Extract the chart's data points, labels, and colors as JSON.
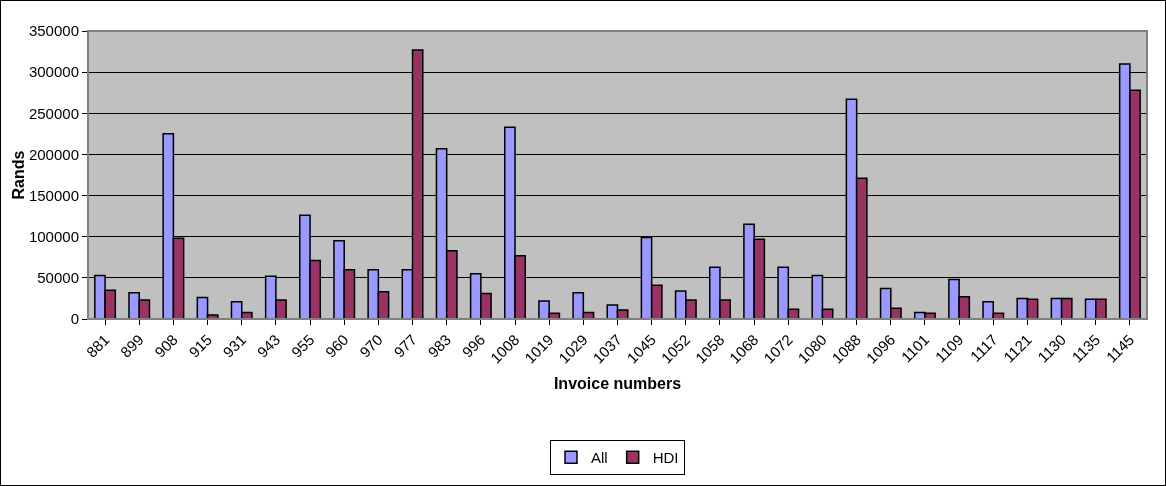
{
  "chart_data": {
    "type": "bar",
    "xlabel": "Invoice numbers",
    "ylabel": "Rands",
    "categories": [
      "881",
      "899",
      "908",
      "915",
      "931",
      "943",
      "955",
      "960",
      "970",
      "977",
      "983",
      "996",
      "1008",
      "1019",
      "1029",
      "1037",
      "1045",
      "1052",
      "1058",
      "1068",
      "1072",
      "1080",
      "1088",
      "1096",
      "1101",
      "1109",
      "1117",
      "1121",
      "1130",
      "1135",
      "1145"
    ],
    "series": [
      {
        "name": "All",
        "color": "#9999ff",
        "values": [
          53000,
          32000,
          225000,
          26000,
          21000,
          52000,
          126000,
          95000,
          60000,
          60000,
          207000,
          55000,
          233000,
          22000,
          32000,
          17000,
          99000,
          34000,
          63000,
          115000,
          63000,
          53000,
          267000,
          37000,
          8000,
          48000,
          21000,
          25000,
          25000,
          24000,
          310000
        ]
      },
      {
        "name": "HDI",
        "color": "#993366",
        "values": [
          35000,
          23000,
          98000,
          5000,
          8000,
          23000,
          71000,
          60000,
          33000,
          327000,
          83000,
          31000,
          77000,
          7000,
          8000,
          11000,
          41000,
          23000,
          23000,
          97000,
          12000,
          12000,
          171000,
          13000,
          7000,
          27000,
          7000,
          24000,
          25000,
          24000,
          278000
        ]
      }
    ],
    "ylim": [
      0,
      350000
    ],
    "yticks": [
      0,
      50000,
      100000,
      150000,
      200000,
      250000,
      300000,
      350000
    ],
    "grid": "y",
    "legend": "bottom"
  }
}
